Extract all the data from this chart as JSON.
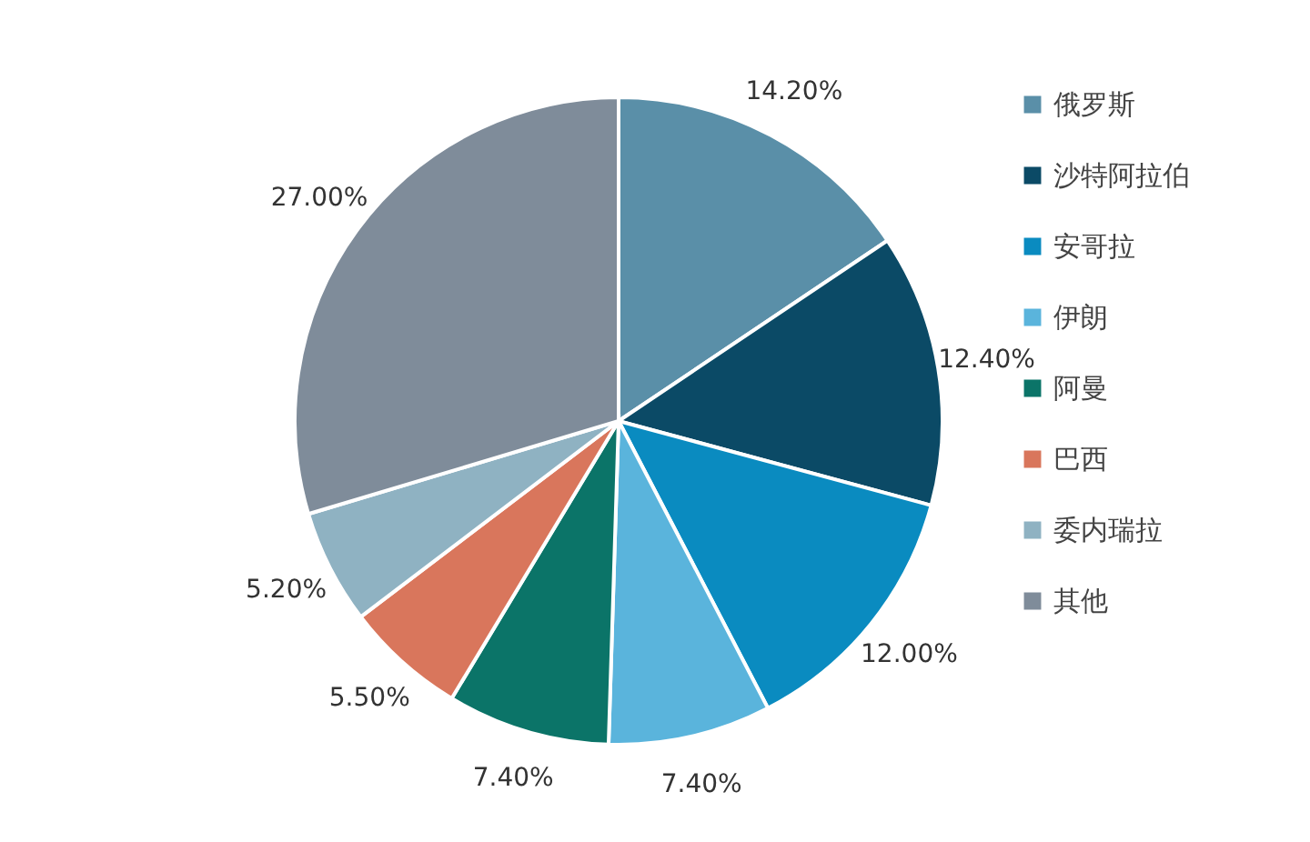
{
  "chart_data": {
    "type": "pie",
    "categories": [
      "俄罗斯",
      "沙特阿拉伯",
      "安哥拉",
      "伊朗",
      "阿曼",
      "巴西",
      "委内瑞拉",
      "其他"
    ],
    "values": [
      14.2,
      12.4,
      12.0,
      7.4,
      7.4,
      5.5,
      5.2,
      27.0
    ],
    "value_labels": [
      "14.20%",
      "12.40%",
      "12.00%",
      "7.40%",
      "7.40%",
      "5.50%",
      "5.20%",
      "27.00%"
    ],
    "colors": [
      "#5a8fa8",
      "#0b4a66",
      "#0a8bc0",
      "#5ab4dc",
      "#0b7468",
      "#d9765c",
      "#8fb2c2",
      "#7f8c9a"
    ],
    "legend": "right"
  }
}
